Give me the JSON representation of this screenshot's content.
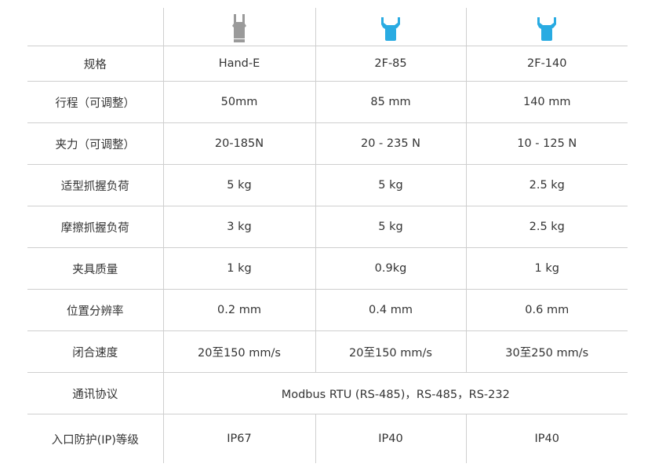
{
  "colors": {
    "hand_e_icon": "#9a9a9a",
    "robotiq_icon": "#29abe2",
    "border": "#cfcfcf"
  },
  "header": {
    "icons": [
      "gripper-hand-e-icon",
      "gripper-2f85-icon",
      "gripper-2f140-icon"
    ]
  },
  "rows": [
    {
      "label": "规格",
      "values": [
        "Hand-E",
        "2F-85",
        "2F-140"
      ]
    },
    {
      "label": "行程（可调整）",
      "values": [
        "50mm",
        "85 mm",
        "140 mm"
      ]
    },
    {
      "label": "夹力（可调整）",
      "values": [
        "20-185N",
        "20 - 235 N",
        "10 - 125 N"
      ]
    },
    {
      "label": "适型抓握负荷",
      "values": [
        "5 kg",
        "5 kg",
        "2.5 kg"
      ]
    },
    {
      "label": "摩擦抓握负荷",
      "values": [
        "3 kg",
        "5 kg",
        "2.5 kg"
      ]
    },
    {
      "label": "夹具质量",
      "values": [
        "1 kg",
        "0.9kg",
        "1 kg"
      ]
    },
    {
      "label": "位置分辨率",
      "values": [
        "0.2 mm",
        "0.4 mm",
        "0.6 mm"
      ]
    },
    {
      "label": "闭合速度",
      "values": [
        "20至150 mm/s",
        "20至150 mm/s",
        "30至250 mm/s"
      ]
    }
  ],
  "protocol": {
    "label": "通讯协议",
    "value": "Modbus RTU (RS-485)，RS-485，RS-232"
  },
  "ip": {
    "label": "入口防护(IP)等级",
    "values": [
      "IP67",
      "IP40",
      "IP40"
    ]
  }
}
